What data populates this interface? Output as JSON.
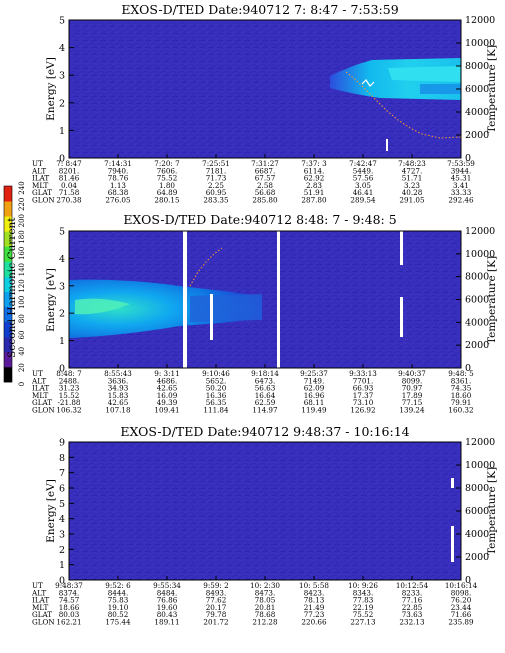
{
  "chart_data": [
    {
      "type": "heatmap",
      "title": "EXOS-D/TED   Date:940712  7: 8:47 - 7:53:59",
      "ylabel": "Energy [eV]",
      "y2label": "Temperature [K]",
      "ylim": [
        0,
        5
      ],
      "y2lim": [
        0,
        12000
      ],
      "yticks": [
        "0",
        "1",
        "2",
        "3",
        "4",
        "5"
      ],
      "y2ticks": [
        "0",
        "2000",
        "4000",
        "6000",
        "8000",
        "10000",
        "12000"
      ],
      "ephemeris_labels": [
        "UT",
        "ALT",
        "ILAT",
        "MLT",
        "GLAT",
        "GLON"
      ],
      "ephemeris": [
        [
          "7: 8:47",
          "7:14:31",
          "7:20: 7",
          "7:25:51",
          "7:31:27",
          "7:37: 3",
          "7:42:47",
          "7:48:23",
          "7:53:59"
        ],
        [
          "8201.",
          "7940.",
          "7606.",
          "7181.",
          "6687.",
          "6114.",
          "5449.",
          "4727.",
          "3944."
        ],
        [
          "81.46",
          "78.76",
          "75.52",
          "71.73",
          "67.57",
          "62.92",
          "57.56",
          "51.71",
          "45.31"
        ],
        [
          "0.04",
          "1.13",
          "1.80",
          "2.25",
          "2.58",
          "2.83",
          "3.05",
          "3.23",
          "3.41"
        ],
        [
          "71.58",
          "68.38",
          "64.89",
          "60.95",
          "56.68",
          "51.91",
          "46.41",
          "40.28",
          "33.33"
        ],
        [
          "270.38",
          "276.05",
          "280.15",
          "283.35",
          "285.80",
          "287.80",
          "289.54",
          "291.05",
          "292.46"
        ]
      ],
      "features": [
        {
          "kind": "band",
          "x_range": [
            0.66,
            1.0
          ],
          "energy_range": [
            2.2,
            3.2
          ],
          "level": "high"
        },
        {
          "kind": "temperature_trace",
          "x": [
            0.62,
            0.7,
            0.78,
            0.86,
            0.93,
            1.0
          ],
          "temperature_K": [
            3600,
            3300,
            2600,
            1800,
            1100,
            900
          ]
        }
      ]
    },
    {
      "type": "heatmap",
      "title": "EXOS-D/TED   Date:940712  8:48: 7 - 9:48: 5",
      "ylabel": "Energy [eV]",
      "y2label": "Temperature [K]",
      "colorbar_label": "Second Harmonic Current",
      "colorbar_ticks": [
        "0",
        "20",
        "40",
        "60",
        "80",
        "100",
        "120",
        "140",
        "160",
        "180",
        "200",
        "220",
        "240"
      ],
      "ylim": [
        0,
        5
      ],
      "y2lim": [
        0,
        12000
      ],
      "yticks": [
        "0",
        "1",
        "2",
        "3",
        "4",
        "5"
      ],
      "y2ticks": [
        "0",
        "2000",
        "4000",
        "6000",
        "8000",
        "10000",
        "12000"
      ],
      "ephemeris_labels": [
        "UT",
        "ALT",
        "ILAT",
        "MLT",
        "GLAT",
        "GLON"
      ],
      "ephemeris": [
        [
          "8:48: 7",
          "8:55:43",
          "9: 3:11",
          "9:10:46",
          "9:18:14",
          "9:25:37",
          "9:33:13",
          "9:40:37",
          "9:48: 5"
        ],
        [
          "2488.",
          "3636.",
          "4686.",
          "5652.",
          "6473.",
          "7149.",
          "7701.",
          "8099.",
          "8361."
        ],
        [
          "31.23",
          "34.93",
          "42.65",
          "50.20",
          "56.63",
          "62.09",
          "66.93",
          "70.97",
          "74.35"
        ],
        [
          "15.52",
          "15.83",
          "16.09",
          "16.36",
          "16.64",
          "16.96",
          "17.37",
          "17.89",
          "18.60"
        ],
        [
          "-21.88",
          "42.65",
          "49.39",
          "56.35",
          "62.59",
          "68.11",
          "73.10",
          "77.15",
          "79.91"
        ],
        [
          "106.32",
          "107.18",
          "109.41",
          "111.84",
          "114.97",
          "119.49",
          "126.92",
          "139.24",
          "160.32"
        ]
      ],
      "features": [
        {
          "kind": "band",
          "x_range": [
            0.0,
            0.4
          ],
          "energy_range": [
            1.3,
            2.7
          ],
          "level": "high"
        },
        {
          "kind": "data_gap",
          "x": 0.435
        },
        {
          "kind": "data_gap",
          "x": 0.67
        }
      ]
    },
    {
      "type": "heatmap",
      "title": "EXOS-D/TED   Date:940712  9:48:37 - 10:16:14",
      "ylabel": "Energy [eV]",
      "y2label": "Temperature [K]",
      "ylim": [
        0,
        9
      ],
      "y2lim": [
        0,
        12000
      ],
      "yticks": [
        "0",
        "1",
        "2",
        "3",
        "4",
        "5",
        "6",
        "7",
        "8",
        "9"
      ],
      "y2ticks": [
        "0",
        "2000",
        "4000",
        "6000",
        "8000",
        "10000",
        "12000"
      ],
      "ephemeris_labels": [
        "UT",
        "ALT",
        "ILAT",
        "MLT",
        "GLAT",
        "GLON"
      ],
      "ephemeris": [
        [
          "9:48:37",
          "9:52: 6",
          "9:55:34",
          "9:59: 2",
          "10: 2:30",
          "10: 5:58",
          "10: 9:26",
          "10:12:54",
          "10:16:14"
        ],
        [
          "8374.",
          "8444.",
          "8484.",
          "8493.",
          "8473.",
          "8423.",
          "8343.",
          "8233.",
          "8098."
        ],
        [
          "74.57",
          "75.83",
          "76.86",
          "77.62",
          "78.05",
          "78.13",
          "77.83",
          "77.16",
          "76.20"
        ],
        [
          "18.66",
          "19.10",
          "19.60",
          "20.17",
          "20.81",
          "21.49",
          "22.19",
          "22.85",
          "23.44"
        ],
        [
          "80.03",
          "80.52",
          "80.43",
          "79.78",
          "78.68",
          "77.23",
          "75.52",
          "73.63",
          "71.66"
        ],
        [
          "162.21",
          "175.44",
          "189.11",
          "201.72",
          "212.28",
          "220.66",
          "227.13",
          "232.13",
          "235.89"
        ]
      ],
      "features": []
    }
  ]
}
